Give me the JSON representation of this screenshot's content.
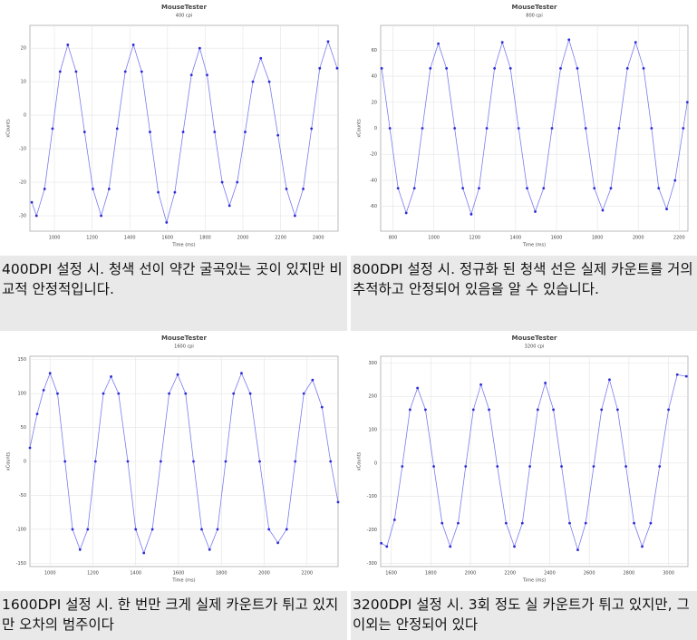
{
  "chart_data": [
    {
      "type": "line",
      "title": "MouseTester",
      "subtitle": "400 cpi",
      "x_label": "Time (ms)",
      "y_label": "xCounts",
      "color": "#2b2bd6",
      "xlim": [
        870,
        2505
      ],
      "xticks": [
        1000,
        1200,
        1400,
        1600,
        1800,
        2000,
        2200,
        2400
      ],
      "ylim": [
        -34.6,
        26.8
      ],
      "yticks": [
        20,
        10,
        0,
        -10,
        -20,
        -30
      ],
      "grid": true,
      "x": [
        880,
        905,
        948,
        990,
        1030,
        1071,
        1115,
        1160,
        1204,
        1248,
        1290,
        1333,
        1376,
        1419,
        1463,
        1507,
        1551,
        1595,
        1639,
        1683,
        1727,
        1771,
        1810,
        1850,
        1890,
        1929,
        1970,
        2012,
        2053,
        2095,
        2140,
        2186,
        2231,
        2276,
        2320,
        2364,
        2408,
        2452,
        2500
      ],
      "values": [
        -26,
        -30,
        -22,
        -4,
        13,
        21,
        13,
        -5,
        -22,
        -30,
        -22,
        -4,
        13,
        21,
        13,
        -5,
        -23,
        -32,
        -23,
        -5,
        12,
        20,
        12,
        -5,
        -20,
        -27,
        -20,
        -5,
        10,
        17,
        10,
        -6,
        -22,
        -30,
        -22,
        -4,
        14,
        22,
        14
      ],
      "caption": "400DPI 설정 시. 청색 선이 약간 굴곡있는 곳이 있지만 비교적 안정적입니다."
    },
    {
      "type": "line",
      "title": "MouseTester",
      "subtitle": "800 cpi",
      "x_label": "Time (ms)",
      "y_label": "xCounts",
      "color": "#2b2bd6",
      "xlim": [
        740,
        2243
      ],
      "xticks": [
        800,
        1000,
        1200,
        1400,
        1600,
        1800,
        2000,
        2200
      ],
      "ylim": [
        -79,
        79
      ],
      "yticks": [
        60,
        40,
        20,
        0,
        -20,
        -40,
        -60
      ],
      "grid": true,
      "x": [
        745,
        785,
        825,
        865,
        905,
        944,
        983,
        1022,
        1062,
        1102,
        1142,
        1183,
        1221,
        1259,
        1297,
        1335,
        1375,
        1415,
        1456,
        1496,
        1537,
        1578,
        1620,
        1661,
        1702,
        1743,
        1785,
        1826,
        1866,
        1906,
        1947,
        1987,
        2026,
        2065,
        2100,
        2139,
        2180,
        2220,
        2240
      ],
      "values": [
        46,
        0,
        -46,
        -65,
        -46,
        0,
        46,
        65,
        46,
        0,
        -46,
        -66,
        -46,
        0,
        46,
        66,
        46,
        0,
        -46,
        -64,
        -46,
        0,
        46,
        68,
        46,
        0,
        -46,
        -63,
        -46,
        0,
        46,
        66,
        46,
        0,
        -46,
        -62,
        -40,
        0,
        20
      ],
      "caption": "800DPI 설정 시. 정규화 된 청색 선은 실제 카운트를 거의 추적하고 안정되어 있음을 알 수 있습니다."
    },
    {
      "type": "line",
      "title": "MouseTester",
      "subtitle": "1600 cpi",
      "x_label": "Time (ms)",
      "y_label": "xCounts",
      "color": "#2b2bd6",
      "xlim": [
        906,
        2345
      ],
      "xticks": [
        1000,
        1200,
        1400,
        1600,
        1800,
        2000,
        2200
      ],
      "ylim": [
        -155,
        155
      ],
      "yticks": [
        150,
        100,
        50,
        0,
        -50,
        -100,
        -150
      ],
      "grid": true,
      "x": [
        906,
        940,
        970,
        1000,
        1035,
        1070,
        1105,
        1140,
        1176,
        1212,
        1249,
        1285,
        1320,
        1363,
        1400,
        1438,
        1478,
        1517,
        1556,
        1596,
        1633,
        1670,
        1708,
        1745,
        1782,
        1820,
        1857,
        1894,
        1935,
        1979,
        2022,
        2064,
        2105,
        2145,
        2185,
        2226,
        2270,
        2310,
        2345
      ],
      "values": [
        20,
        70,
        105,
        130,
        100,
        0,
        -100,
        -130,
        -100,
        0,
        100,
        125,
        100,
        0,
        -100,
        -135,
        -100,
        0,
        100,
        128,
        100,
        0,
        -100,
        -130,
        -100,
        0,
        100,
        130,
        100,
        0,
        -100,
        -120,
        -100,
        0,
        100,
        120,
        80,
        0,
        -60
      ],
      "caption": "1600DPI 설정 시. 한 번만 크게 실제 카운트가 튀고 있지만 오차의 범주이다"
    },
    {
      "type": "line",
      "title": "MouseTester",
      "subtitle": "3200 cpi",
      "x_label": "Time (ms)",
      "y_label": "xCounts",
      "color": "#2b2bd6",
      "xlim": [
        1547,
        3098
      ],
      "xticks": [
        1600,
        1800,
        2000,
        2200,
        2400,
        2600,
        2800,
        3000
      ],
      "ylim": [
        -310,
        320
      ],
      "yticks": [
        300,
        200,
        100,
        0,
        -100,
        -200,
        -300
      ],
      "grid": true,
      "x": [
        1550,
        1578,
        1617,
        1656,
        1695,
        1733,
        1773,
        1815,
        1857,
        1898,
        1938,
        1976,
        2015,
        2053,
        2094,
        2136,
        2180,
        2222,
        2262,
        2300,
        2340,
        2378,
        2419,
        2460,
        2501,
        2542,
        2582,
        2622,
        2662,
        2702,
        2743,
        2785,
        2826,
        2867,
        2910,
        2955,
        3000,
        3044,
        3090
      ],
      "values": [
        -240,
        -250,
        -170,
        -10,
        160,
        225,
        160,
        -10,
        -180,
        -250,
        -180,
        -10,
        160,
        235,
        160,
        -10,
        -180,
        -250,
        -180,
        -10,
        160,
        240,
        160,
        -10,
        -180,
        -260,
        -180,
        -10,
        160,
        250,
        160,
        -10,
        -180,
        -250,
        -180,
        -10,
        160,
        265,
        260
      ],
      "caption": "3200DPI 설정 시. 3회 정도 실 카운트가 튀고 있지만, 그 이외는 안정되어 있다"
    }
  ]
}
